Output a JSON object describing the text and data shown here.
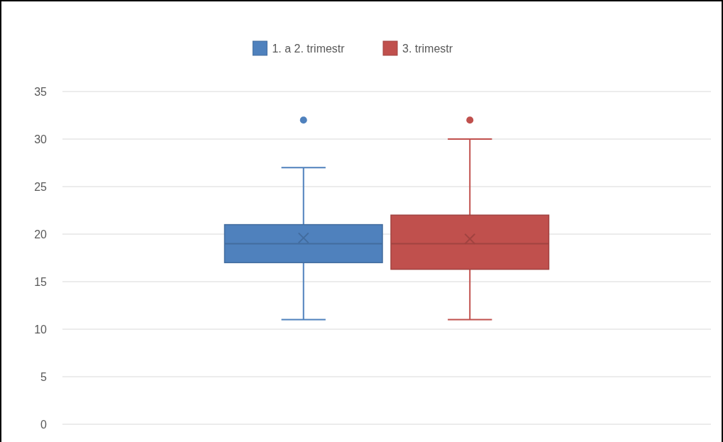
{
  "chart_data": {
    "type": "box",
    "categories": [
      null
    ],
    "ylim": [
      0,
      35
    ],
    "yticks": [
      0,
      5,
      10,
      15,
      20,
      25,
      30,
      35
    ],
    "grid": "y",
    "legend": "top",
    "tick_labels": "y",
    "series": [
      {
        "name": "1. a 2. trimestr",
        "color": "#4f81bd",
        "boxes": [
          {
            "low": 11,
            "q1": 17,
            "median": 19,
            "q3": 21,
            "high": 27,
            "mean": 19.6,
            "outliers": [
              32
            ]
          }
        ]
      },
      {
        "name": "3. trimestr",
        "color": "#c0504d",
        "boxes": [
          {
            "low": 11,
            "q1": 16.3,
            "median": 19,
            "q3": 22,
            "high": 30,
            "mean": 19.5,
            "outliers": [
              32
            ]
          }
        ]
      }
    ]
  }
}
